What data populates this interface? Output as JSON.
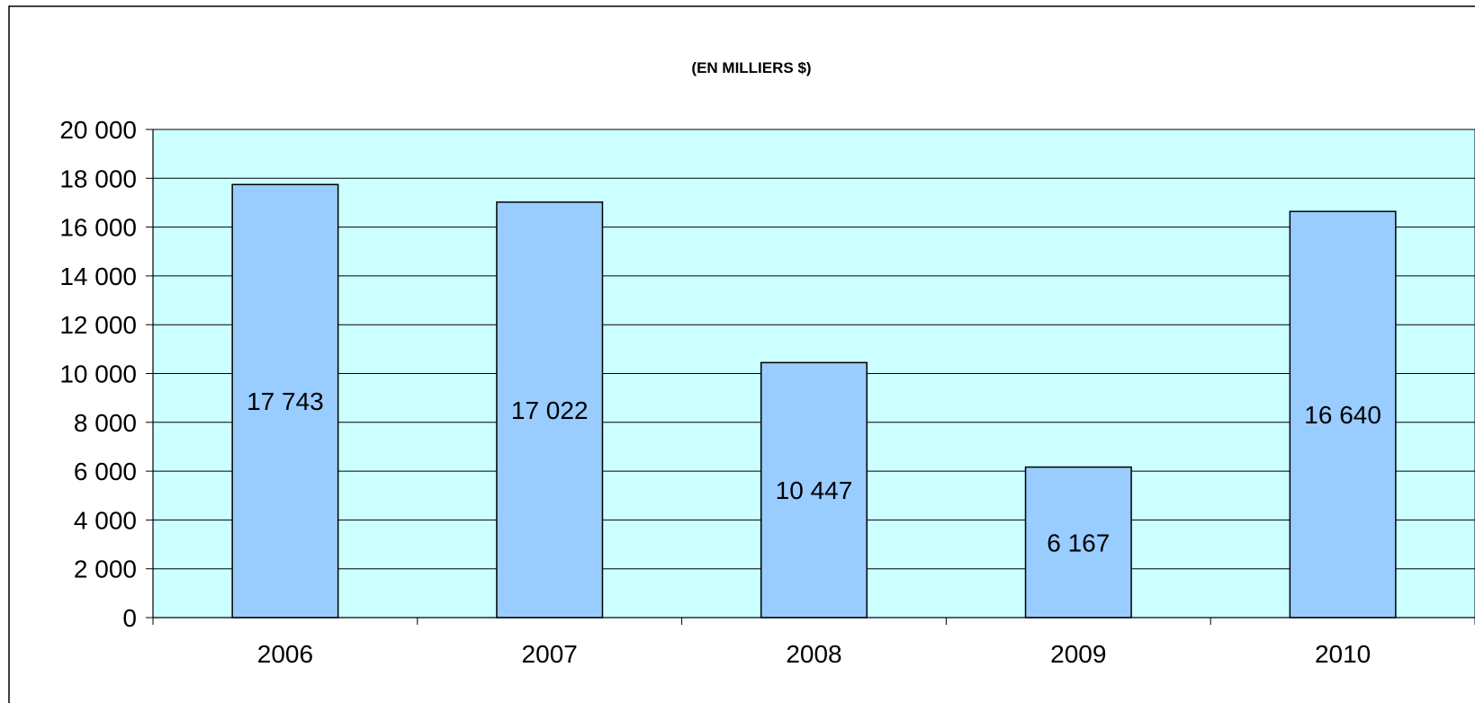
{
  "chart_data": {
    "type": "bar",
    "title": "(EN MILLIERS $)",
    "categories": [
      "2006",
      "2007",
      "2008",
      "2009",
      "2010"
    ],
    "values": [
      17743,
      17022,
      10447,
      6167,
      16640
    ],
    "value_labels": [
      "17 743",
      "17 022",
      "10 447",
      "6 167",
      "16 640"
    ],
    "xlabel": "",
    "ylabel": "",
    "ylim": [
      0,
      20000
    ],
    "y_ticks": [
      0,
      2000,
      4000,
      6000,
      8000,
      10000,
      12000,
      14000,
      16000,
      18000,
      20000
    ],
    "y_tick_labels": [
      "0",
      "2 000",
      "4 000",
      "6 000",
      "8 000",
      "10 000",
      "12 000",
      "14 000",
      "16 000",
      "18 000",
      "20 000"
    ],
    "grid": true,
    "legend": "none",
    "colors": {
      "plot_background": "#ccffff",
      "bar_fill": "#99ccff",
      "bar_stroke": "#000000",
      "gridline": "#000000"
    }
  }
}
